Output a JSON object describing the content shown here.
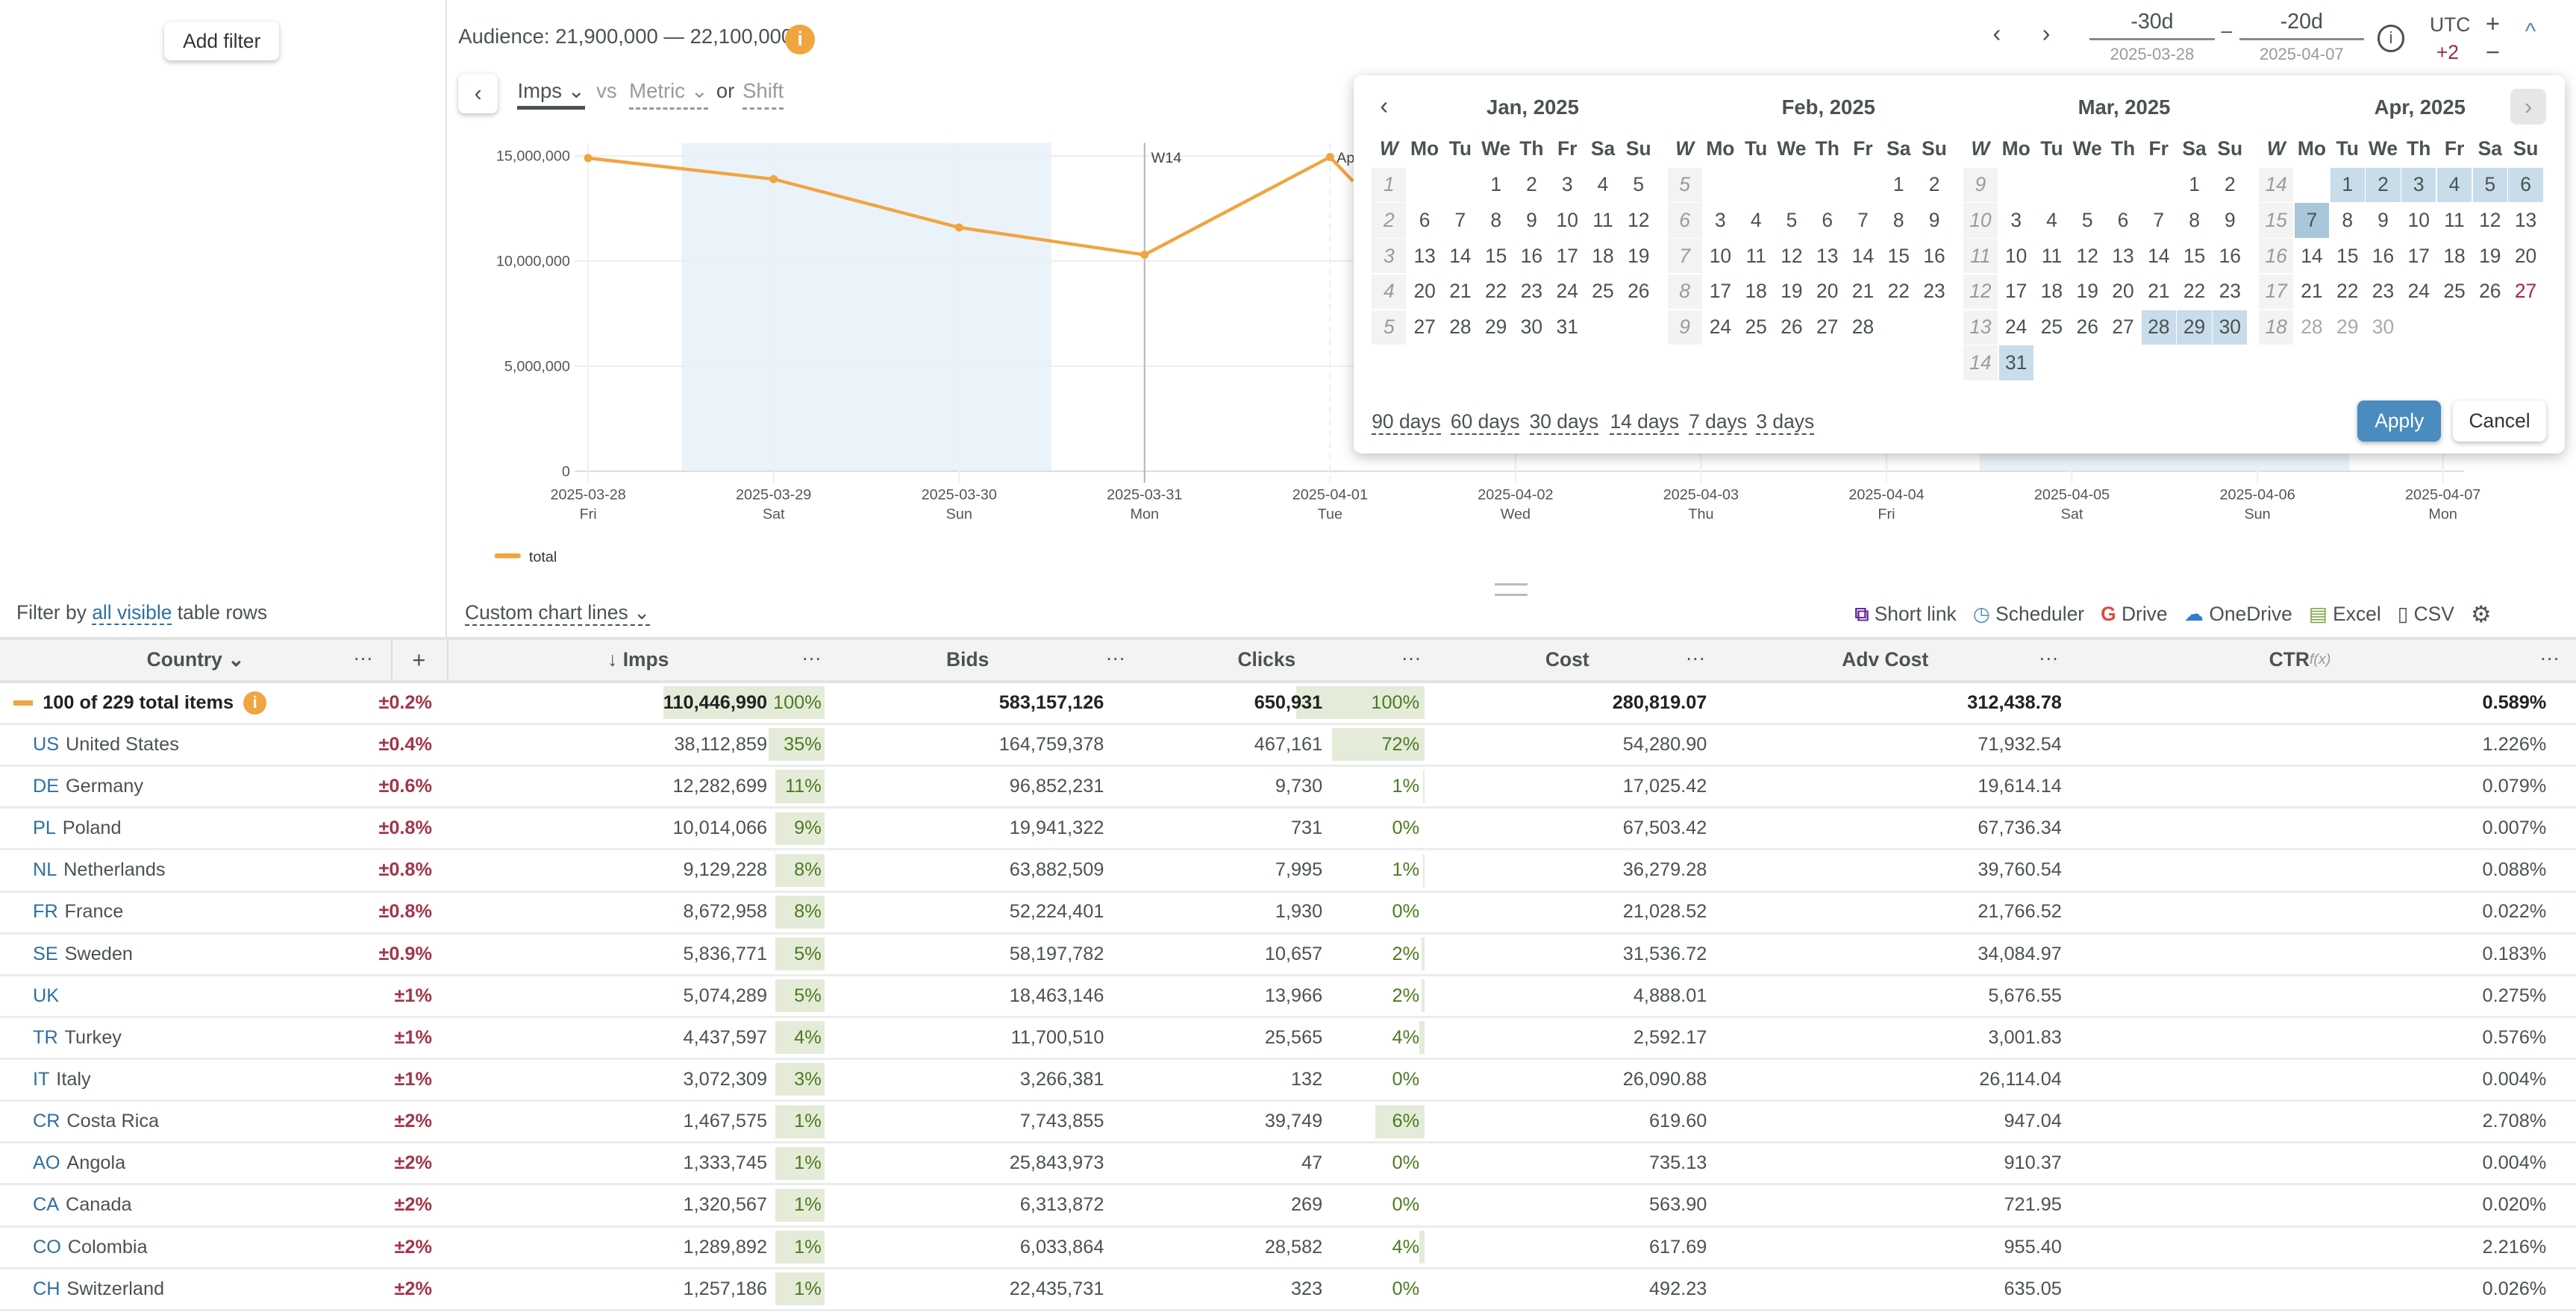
{
  "sidebar": {
    "add_filter": "Add filter",
    "filter_prefix": "Filter by",
    "filter_link": "all visible",
    "filter_suffix": "table rows"
  },
  "header": {
    "audience": "Audience: 21,900,000 — 22,100,000",
    "metric": "Imps",
    "vs": "vs",
    "metric2": "Metric",
    "or": "or",
    "shift": "Shift",
    "range_from": "-30d",
    "range_from_date": "2025-03-28",
    "range_sep": "–",
    "range_to": "-20d",
    "range_to_date": "2025-04-07",
    "tz": "UTC",
    "tz_offset": "+2",
    "plus": "+",
    "minus": "−"
  },
  "colors": {
    "accent": "#f0a540",
    "link": "#2f6f9f",
    "error": "#a3354a",
    "positive": "#4d7a1f",
    "apply": "#4a8bc0",
    "selection": "#c8dce9"
  },
  "chart_data": {
    "type": "line",
    "x": [
      "2025-03-28",
      "2025-03-29",
      "2025-03-30",
      "2025-03-31",
      "2025-04-01"
    ],
    "series": [
      {
        "name": "total",
        "values": [
          14900000,
          13900000,
          11600000,
          10300000,
          14950000
        ]
      }
    ],
    "x_ticks": [
      {
        "date": "2025-03-28",
        "day": "Fri"
      },
      {
        "date": "2025-03-29",
        "day": "Sat"
      },
      {
        "date": "2025-03-30",
        "day": "Sun"
      },
      {
        "date": "2025-03-31",
        "day": "Mon"
      },
      {
        "date": "2025-04-01",
        "day": "Tue"
      },
      {
        "date": "2025-04-02",
        "day": "Wed"
      },
      {
        "date": "2025-04-03",
        "day": "Thu"
      },
      {
        "date": "2025-04-04",
        "day": "Fri"
      },
      {
        "date": "2025-04-05",
        "day": "Sat"
      },
      {
        "date": "2025-04-06",
        "day": "Sun"
      },
      {
        "date": "2025-04-07",
        "day": "Mon"
      }
    ],
    "y_ticks": [
      "0",
      "5,000,000",
      "10,000,000",
      "15,000,000"
    ],
    "ylim": [
      0,
      15000000
    ],
    "markers": [
      "W14",
      "Ap"
    ],
    "weekend_bands": true,
    "grid": true,
    "legend": "bottom-left",
    "color": "#f0a540"
  },
  "calendar": {
    "week_label": "W",
    "weekdays": [
      "Mo",
      "Tu",
      "We",
      "Th",
      "Fr",
      "Sa",
      "Su"
    ],
    "months": [
      {
        "title": "Jan, 2025",
        "offset": 2,
        "days": 31,
        "weeks": [
          "1",
          "2",
          "3",
          "4",
          "5"
        ],
        "selected": [],
        "end": [],
        "today": [],
        "future_from": null
      },
      {
        "title": "Feb, 2025",
        "offset": 5,
        "days": 28,
        "weeks": [
          "5",
          "6",
          "7",
          "8",
          "9"
        ],
        "selected": [],
        "end": [],
        "today": [],
        "future_from": null
      },
      {
        "title": "Mar, 2025",
        "offset": 5,
        "days": 31,
        "weeks": [
          "9",
          "10",
          "11",
          "12",
          "13",
          "14"
        ],
        "selected": [
          28,
          29,
          30,
          31
        ],
        "end": [],
        "today": [],
        "future_from": null
      },
      {
        "title": "Apr, 2025",
        "offset": 1,
        "days": 30,
        "weeks": [
          "14",
          "15",
          "16",
          "17",
          "18"
        ],
        "selected": [
          1,
          2,
          3,
          4,
          5,
          6
        ],
        "end": [
          7
        ],
        "today": [
          27
        ],
        "future_from": 28
      }
    ],
    "presets": [
      "90 days",
      "60 days",
      "30 days",
      "14 days",
      "7 days",
      "3 days"
    ],
    "apply": "Apply",
    "cancel": "Cancel"
  },
  "toolbar": {
    "custom_lines": "Custom chart lines",
    "short_link": "Short link",
    "scheduler": "Scheduler",
    "drive": "Drive",
    "onedrive": "OneDrive",
    "excel": "Excel",
    "csv": "CSV"
  },
  "table": {
    "headers": {
      "country": "Country",
      "imps": "↓ Imps",
      "bids": "Bids",
      "clicks": "Clicks",
      "cost": "Cost",
      "adv_cost": "Adv Cost",
      "ctr": "CTR",
      "ctr_fx": "f(x)",
      "add": "+",
      "more": "···"
    },
    "total": {
      "label": "100 of 229 total items",
      "err": "±0.2%",
      "imps": "110,446,990",
      "imps_pct": "100%",
      "imps_frac": 1.0,
      "bids": "583,157,126",
      "clicks": "650,931",
      "clicks_pct": "100%",
      "clicks_frac": 1.0,
      "cost": "280,819.07",
      "adv_cost": "312,438.78",
      "ctr": "0.589%"
    },
    "rows": [
      {
        "code": "US",
        "name": "United States",
        "err": "±0.4%",
        "imps": "38,112,859",
        "imps_pct": "35%",
        "imps_frac": 0.35,
        "bids": "164,759,378",
        "clicks": "467,161",
        "clicks_pct": "72%",
        "clicks_frac": 0.72,
        "cost": "54,280.90",
        "adv_cost": "71,932.54",
        "ctr": "1.226%"
      },
      {
        "code": "DE",
        "name": "Germany",
        "err": "±0.6%",
        "imps": "12,282,699",
        "imps_pct": "11%",
        "imps_frac": 0.11,
        "bids": "96,852,231",
        "clicks": "9,730",
        "clicks_pct": "1%",
        "clicks_frac": 0.01,
        "cost": "17,025.42",
        "adv_cost": "19,614.14",
        "ctr": "0.079%"
      },
      {
        "code": "PL",
        "name": "Poland",
        "err": "±0.8%",
        "imps": "10,014,066",
        "imps_pct": "9%",
        "imps_frac": 0.09,
        "bids": "19,941,322",
        "clicks": "731",
        "clicks_pct": "0%",
        "clicks_frac": 0,
        "cost": "67,503.42",
        "adv_cost": "67,736.34",
        "ctr": "0.007%"
      },
      {
        "code": "NL",
        "name": "Netherlands",
        "err": "±0.8%",
        "imps": "9,129,228",
        "imps_pct": "8%",
        "imps_frac": 0.08,
        "bids": "63,882,509",
        "clicks": "7,995",
        "clicks_pct": "1%",
        "clicks_frac": 0.01,
        "cost": "36,279.28",
        "adv_cost": "39,760.54",
        "ctr": "0.088%"
      },
      {
        "code": "FR",
        "name": "France",
        "err": "±0.8%",
        "imps": "8,672,958",
        "imps_pct": "8%",
        "imps_frac": 0.08,
        "bids": "52,224,401",
        "clicks": "1,930",
        "clicks_pct": "0%",
        "clicks_frac": 0,
        "cost": "21,028.52",
        "adv_cost": "21,766.52",
        "ctr": "0.022%"
      },
      {
        "code": "SE",
        "name": "Sweden",
        "err": "±0.9%",
        "imps": "5,836,771",
        "imps_pct": "5%",
        "imps_frac": 0.05,
        "bids": "58,197,782",
        "clicks": "10,657",
        "clicks_pct": "2%",
        "clicks_frac": 0.02,
        "cost": "31,536.72",
        "adv_cost": "34,084.97",
        "ctr": "0.183%"
      },
      {
        "code": "UK",
        "name": "",
        "err": "±1%",
        "imps": "5,074,289",
        "imps_pct": "5%",
        "imps_frac": 0.05,
        "bids": "18,463,146",
        "clicks": "13,966",
        "clicks_pct": "2%",
        "clicks_frac": 0.02,
        "cost": "4,888.01",
        "adv_cost": "5,676.55",
        "ctr": "0.275%"
      },
      {
        "code": "TR",
        "name": "Turkey",
        "err": "±1%",
        "imps": "4,437,597",
        "imps_pct": "4%",
        "imps_frac": 0.04,
        "bids": "11,700,510",
        "clicks": "25,565",
        "clicks_pct": "4%",
        "clicks_frac": 0.04,
        "cost": "2,592.17",
        "adv_cost": "3,001.83",
        "ctr": "0.576%"
      },
      {
        "code": "IT",
        "name": "Italy",
        "err": "±1%",
        "imps": "3,072,309",
        "imps_pct": "3%",
        "imps_frac": 0.03,
        "bids": "3,266,381",
        "clicks": "132",
        "clicks_pct": "0%",
        "clicks_frac": 0,
        "cost": "26,090.88",
        "adv_cost": "26,114.04",
        "ctr": "0.004%"
      },
      {
        "code": "CR",
        "name": "Costa Rica",
        "err": "±2%",
        "imps": "1,467,575",
        "imps_pct": "1%",
        "imps_frac": 0.01,
        "bids": "7,743,855",
        "clicks": "39,749",
        "clicks_pct": "6%",
        "clicks_frac": 0.06,
        "cost": "619.60",
        "adv_cost": "947.04",
        "ctr": "2.708%"
      },
      {
        "code": "AO",
        "name": "Angola",
        "err": "±2%",
        "imps": "1,333,745",
        "imps_pct": "1%",
        "imps_frac": 0.01,
        "bids": "25,843,973",
        "clicks": "47",
        "clicks_pct": "0%",
        "clicks_frac": 0,
        "cost": "735.13",
        "adv_cost": "910.37",
        "ctr": "0.004%"
      },
      {
        "code": "CA",
        "name": "Canada",
        "err": "±2%",
        "imps": "1,320,567",
        "imps_pct": "1%",
        "imps_frac": 0.01,
        "bids": "6,313,872",
        "clicks": "269",
        "clicks_pct": "0%",
        "clicks_frac": 0,
        "cost": "563.90",
        "adv_cost": "721.95",
        "ctr": "0.020%"
      },
      {
        "code": "CO",
        "name": "Colombia",
        "err": "±2%",
        "imps": "1,289,892",
        "imps_pct": "1%",
        "imps_frac": 0.01,
        "bids": "6,033,864",
        "clicks": "28,582",
        "clicks_pct": "4%",
        "clicks_frac": 0.04,
        "cost": "617.69",
        "adv_cost": "955.40",
        "ctr": "2.216%"
      },
      {
        "code": "CH",
        "name": "Switzerland",
        "err": "±2%",
        "imps": "1,257,186",
        "imps_pct": "1%",
        "imps_frac": 0.01,
        "bids": "22,435,731",
        "clicks": "323",
        "clicks_pct": "0%",
        "clicks_frac": 0,
        "cost": "492.23",
        "adv_cost": "635.05",
        "ctr": "0.026%"
      }
    ]
  }
}
